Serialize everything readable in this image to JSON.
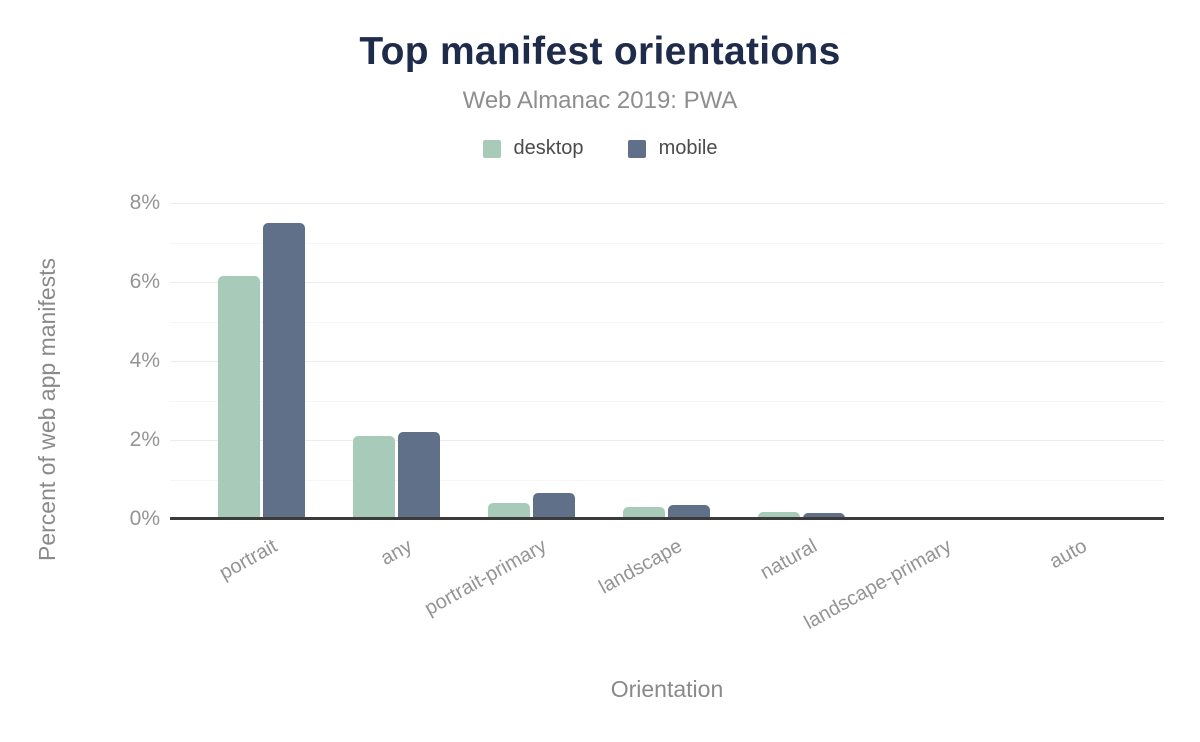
{
  "header": {
    "title": "Top manifest orientations",
    "subtitle": "Web Almanac 2019: PWA"
  },
  "legend": {
    "items": [
      {
        "label": "desktop",
        "color": "#a8cbb9"
      },
      {
        "label": "mobile",
        "color": "#5f7088"
      }
    ]
  },
  "axes": {
    "x_title": "Orientation",
    "y_title": "Percent of web app manifests",
    "y_tick_labels": [
      "0%",
      "2%",
      "4%",
      "6%",
      "8%"
    ]
  },
  "chart_data": {
    "type": "bar",
    "title": "Top manifest orientations",
    "subtitle": "Web Almanac 2019: PWA",
    "categories": [
      "portrait",
      "any",
      "portrait-primary",
      "landscape",
      "natural",
      "landscape-primary",
      "auto"
    ],
    "series": [
      {
        "name": "desktop",
        "color": "#a8cbb9",
        "values": [
          6.15,
          2.1,
          0.4,
          0.3,
          0.18,
          0.05,
          0.04
        ]
      },
      {
        "name": "mobile",
        "color": "#5f7088",
        "values": [
          7.5,
          2.2,
          0.65,
          0.35,
          0.15,
          0.05,
          0.04
        ]
      }
    ],
    "xlabel": "Orientation",
    "ylabel": "Percent of web app manifests",
    "ylim": [
      0,
      8
    ],
    "ytick_values": [
      0,
      2,
      4,
      6,
      8
    ],
    "grid": "horizontal; major gridlines every 2%, minor gridlines every 1%",
    "legend_position": "top center"
  },
  "colors": {
    "title": "#1e2b4a",
    "subtitle": "#8e8e8e",
    "tick_text": "#949494",
    "axis_title_text": "#8a8a8a",
    "legend_text": "#4b4b4b",
    "axis_line": "#3b3b3b",
    "grid_major": "#ececec",
    "grid_minor": "#f6f6f6",
    "desktop_bar": "#a8cbb9",
    "mobile_bar": "#5f7088",
    "background": "#ffffff"
  }
}
